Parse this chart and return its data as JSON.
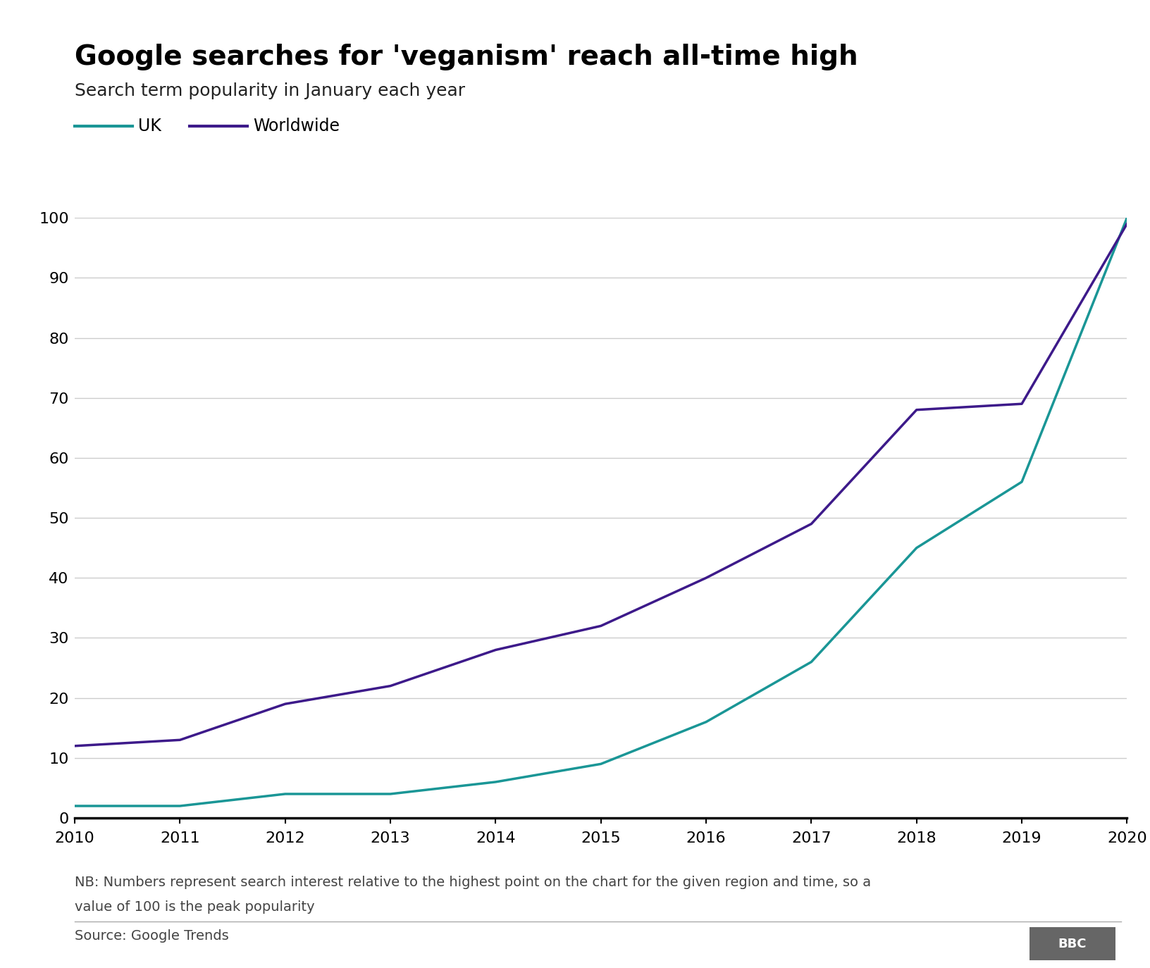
{
  "title": "Google searches for 'veganism' reach all-time high",
  "subtitle": "Search term popularity in January each year",
  "years": [
    2010,
    2011,
    2012,
    2013,
    2014,
    2015,
    2016,
    2017,
    2018,
    2019,
    2020
  ],
  "uk": [
    2,
    2,
    4,
    4,
    6,
    9,
    16,
    26,
    45,
    56,
    100
  ],
  "worldwide": [
    12,
    13,
    19,
    22,
    28,
    32,
    40,
    49,
    68,
    69,
    99
  ],
  "uk_color": "#1a9696",
  "worldwide_color": "#3d1a8a",
  "line_width": 2.5,
  "ylim": [
    0,
    100
  ],
  "yticks": [
    0,
    10,
    20,
    30,
    40,
    50,
    60,
    70,
    80,
    90,
    100
  ],
  "xticks": [
    2010,
    2011,
    2012,
    2013,
    2014,
    2015,
    2016,
    2017,
    2018,
    2019,
    2020
  ],
  "grid_color": "#cccccc",
  "background_color": "#ffffff",
  "note_line1": "NB: Numbers represent search interest relative to the highest point on the chart for the given region and time, so a",
  "note_line2": "value of 100 is the peak popularity",
  "source": "Source: Google Trends",
  "title_fontsize": 28,
  "subtitle_fontsize": 18,
  "axis_fontsize": 16,
  "legend_fontsize": 17,
  "note_fontsize": 14,
  "source_fontsize": 14
}
